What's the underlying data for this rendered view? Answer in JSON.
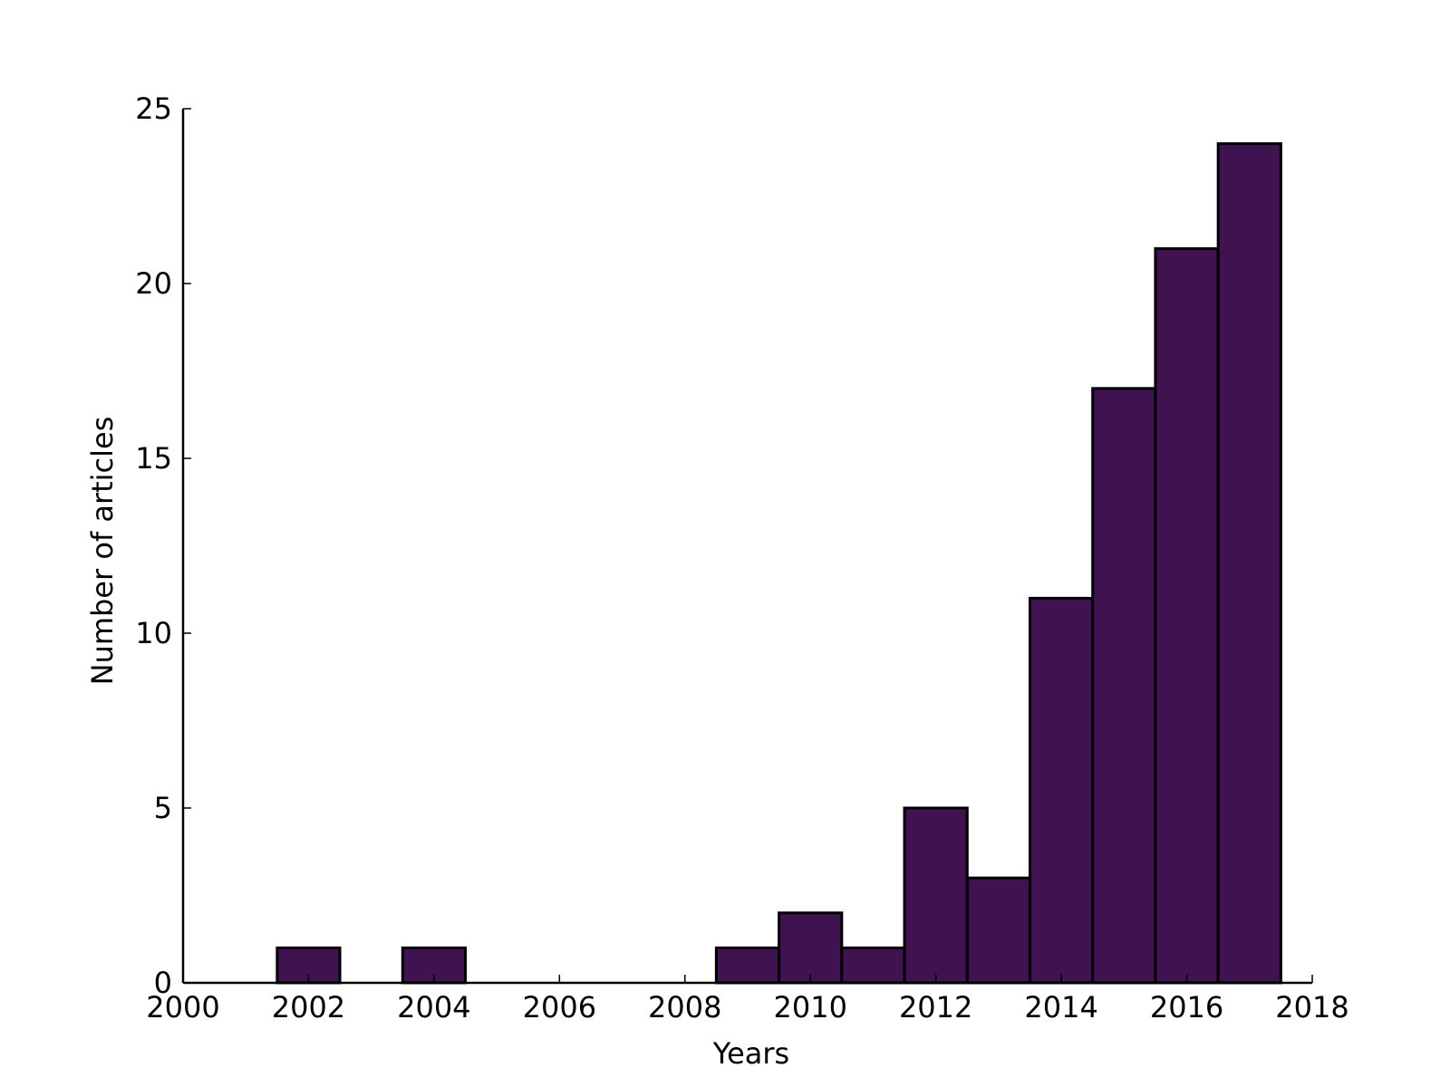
{
  "chart_data": {
    "type": "bar",
    "xlabel": "Years",
    "ylabel": "Number of articles",
    "x": [
      2001,
      2002,
      2003,
      2004,
      2005,
      2006,
      2007,
      2008,
      2009,
      2010,
      2011,
      2012,
      2013,
      2014,
      2015,
      2016,
      2017
    ],
    "values": [
      0,
      1,
      0,
      1,
      0,
      0,
      0,
      0,
      1,
      2,
      1,
      5,
      3,
      11,
      17,
      21,
      24
    ],
    "bar_width_years": 1,
    "xlim": [
      2000,
      2018
    ],
    "ylim": [
      0,
      25
    ],
    "xticks": [
      2000,
      2002,
      2004,
      2006,
      2008,
      2010,
      2012,
      2014,
      2016,
      2018
    ],
    "yticks": [
      0,
      5,
      10,
      15,
      20,
      25
    ],
    "bar_color": "#3f1350",
    "edge_color": "#000000",
    "grid": false,
    "legend": "none"
  }
}
